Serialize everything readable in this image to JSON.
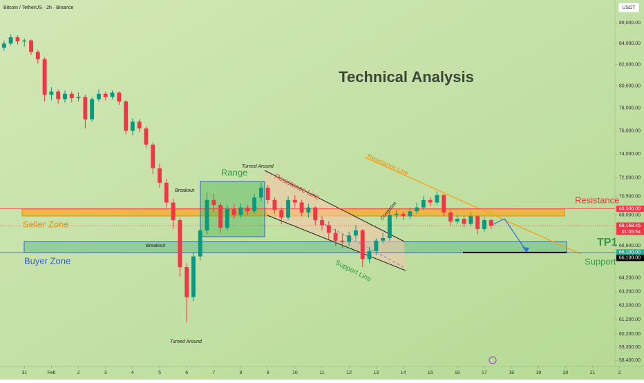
{
  "header": {
    "title": "Bitcoin / TetherUS · 2h · Binance",
    "currency": "USDT"
  },
  "chart_data": {
    "type": "candlestick",
    "title": "Technical Analysis",
    "x": [
      -0.75,
      -0.5,
      -0.25,
      0,
      0.25,
      0.5,
      0.75,
      1,
      1.25,
      1.5,
      1.75,
      2,
      2.25,
      2.5,
      2.75,
      3,
      3.25,
      3.5,
      3.75,
      4,
      4.25,
      4.5,
      4.75,
      5,
      5.25,
      5.5,
      5.75,
      6,
      6.25,
      6.5,
      6.75,
      7,
      7.25,
      7.5,
      7.75,
      8,
      8.25,
      8.5,
      8.75,
      9,
      9.25,
      9.5,
      9.75,
      10,
      10.25,
      10.5,
      10.75,
      11,
      11.25,
      11.5,
      11.75,
      12,
      12.25,
      12.5,
      12.75,
      13,
      13.25,
      13.5,
      13.75,
      14,
      14.25,
      14.5,
      14.75,
      15,
      15.25,
      15.5,
      15.75,
      16,
      16.25,
      16.5,
      16.75,
      17,
      17.25
    ],
    "open": [
      83600,
      84000,
      84600,
      84200,
      84300,
      83200,
      82500,
      79200,
      79500,
      78800,
      79300,
      78900,
      79000,
      77000,
      78800,
      79300,
      79000,
      79400,
      78600,
      76000,
      76800,
      76200,
      74800,
      72800,
      71600,
      70000,
      68600,
      65000,
      62800,
      65800,
      67800,
      70200,
      69800,
      68000,
      69500,
      69000,
      69600,
      69300,
      70400,
      71200,
      70200,
      69400,
      68800,
      70200,
      70000,
      69200,
      69600,
      68600,
      68200,
      67600,
      67000,
      66900,
      67400,
      67800,
      65600,
      66200,
      67000,
      67200,
      69000,
      69100,
      68900,
      69300,
      69600,
      70200,
      70000,
      70600,
      69200,
      68500,
      68700,
      68300,
      68900,
      67900,
      68600
    ],
    "high": [
      84300,
      84900,
      84800,
      84500,
      84400,
      83400,
      82700,
      79900,
      79700,
      79600,
      79500,
      79400,
      79200,
      79000,
      79700,
      79500,
      79600,
      79500,
      78700,
      77100,
      77000,
      76400,
      75000,
      73200,
      71900,
      70300,
      68800,
      65300,
      66100,
      68100,
      70800,
      70700,
      70000,
      69800,
      69900,
      69900,
      69800,
      70700,
      71600,
      71400,
      70400,
      69600,
      70500,
      70600,
      70200,
      69900,
      69700,
      68900,
      68500,
      67900,
      67500,
      67700,
      68200,
      67900,
      66500,
      67200,
      67600,
      69300,
      69400,
      69300,
      69600,
      70000,
      70500,
      70400,
      70900,
      70700,
      69400,
      69000,
      68900,
      69200,
      69000,
      68800,
      68700
    ],
    "low": [
      83300,
      83800,
      83900,
      83700,
      82900,
      82100,
      78600,
      78700,
      78400,
      78500,
      78500,
      78600,
      76200,
      76800,
      78600,
      78700,
      78800,
      78300,
      75700,
      75600,
      75900,
      74500,
      72300,
      71200,
      69600,
      67900,
      64300,
      61000,
      62500,
      65500,
      67500,
      69200,
      67600,
      67800,
      68700,
      68800,
      69000,
      69100,
      70100,
      69900,
      69100,
      68300,
      68600,
      69600,
      68900,
      68800,
      68200,
      67800,
      67100,
      66600,
      66400,
      66600,
      67100,
      65000,
      65300,
      65900,
      66800,
      67000,
      68700,
      68600,
      68700,
      69100,
      69400,
      69700,
      69800,
      68900,
      68200,
      68300,
      68000,
      68100,
      67500,
      67700,
      67900
    ],
    "close": [
      84000,
      84600,
      84200,
      84300,
      83200,
      82500,
      79200,
      79500,
      78800,
      79300,
      78900,
      79000,
      77000,
      78800,
      79300,
      79000,
      79400,
      78600,
      76000,
      76800,
      76200,
      74800,
      72800,
      71600,
      70000,
      68600,
      65000,
      62800,
      65800,
      67800,
      70200,
      69800,
      68000,
      69500,
      69000,
      69600,
      69300,
      70400,
      71200,
      70200,
      69400,
      68800,
      70200,
      70000,
      69200,
      69600,
      68600,
      68200,
      67600,
      67000,
      66900,
      67400,
      67800,
      65600,
      66200,
      67000,
      67200,
      69000,
      69100,
      68900,
      69300,
      69600,
      70200,
      70000,
      70600,
      69200,
      68500,
      68700,
      68300,
      68900,
      67900,
      68600,
      68168.45
    ],
    "up_color": "#089981",
    "down_color": "#f23645",
    "log_scale": true,
    "ylim": [
      58000,
      88300
    ],
    "yticks": [
      {
        "value": 86000,
        "label": "86,000.00"
      },
      {
        "value": 84000,
        "label": "84,000.00"
      },
      {
        "value": 82000,
        "label": "82,000.00"
      },
      {
        "value": 80000,
        "label": "80,000.00"
      },
      {
        "value": 78000,
        "label": "78,000.00"
      },
      {
        "value": 76000,
        "label": "76,000.00"
      },
      {
        "value": 74000,
        "label": "74,000.00"
      },
      {
        "value": 72000,
        "label": "72,000.00"
      },
      {
        "value": 70500,
        "label": "70,500.00"
      },
      {
        "value": 69000,
        "label": "69,000.00"
      },
      {
        "value": 66600,
        "label": "66,600.00"
      },
      {
        "value": 64200,
        "label": "64,200.00"
      },
      {
        "value": 63200,
        "label": "63,200.00"
      },
      {
        "value": 62200,
        "label": "62,200.00"
      },
      {
        "value": 61200,
        "label": "61,200.00"
      },
      {
        "value": 60200,
        "label": "60,200.00"
      },
      {
        "value": 59300,
        "label": "59,300.00"
      },
      {
        "value": 58400,
        "label": "58,400.00"
      }
    ],
    "xlim": [
      -0.9,
      22.9
    ],
    "xticks": [
      {
        "value": 0,
        "label": "31"
      },
      {
        "value": 1,
        "label": "Feb"
      },
      2,
      3,
      4,
      5,
      6,
      7,
      8,
      9,
      10,
      11,
      12,
      13,
      14,
      15,
      16,
      17,
      18,
      19,
      20,
      21,
      {
        "value": 22,
        "label": "2"
      }
    ],
    "price_labels": [
      {
        "value": 69500,
        "label": "69,500.00",
        "color": "#f23645"
      },
      {
        "value": 68168.45,
        "label": "68,168.45",
        "countdown": "01:05:54",
        "color": "#f23645"
      },
      {
        "value": 66100,
        "label": "66,100.00",
        "color": "#22ab94"
      },
      {
        "value": 66100,
        "label": "66,100.00",
        "color": "#000000"
      }
    ],
    "annotations": [
      "Seller Zone",
      "Buyer Zone",
      "Resistance",
      "Support",
      "TP1",
      "Range",
      "Breakout",
      "Breakout",
      "Turned Around",
      "Turned Around",
      "Resistance Line",
      "Resistance Line",
      "Support Line",
      "Correction"
    ]
  }
}
